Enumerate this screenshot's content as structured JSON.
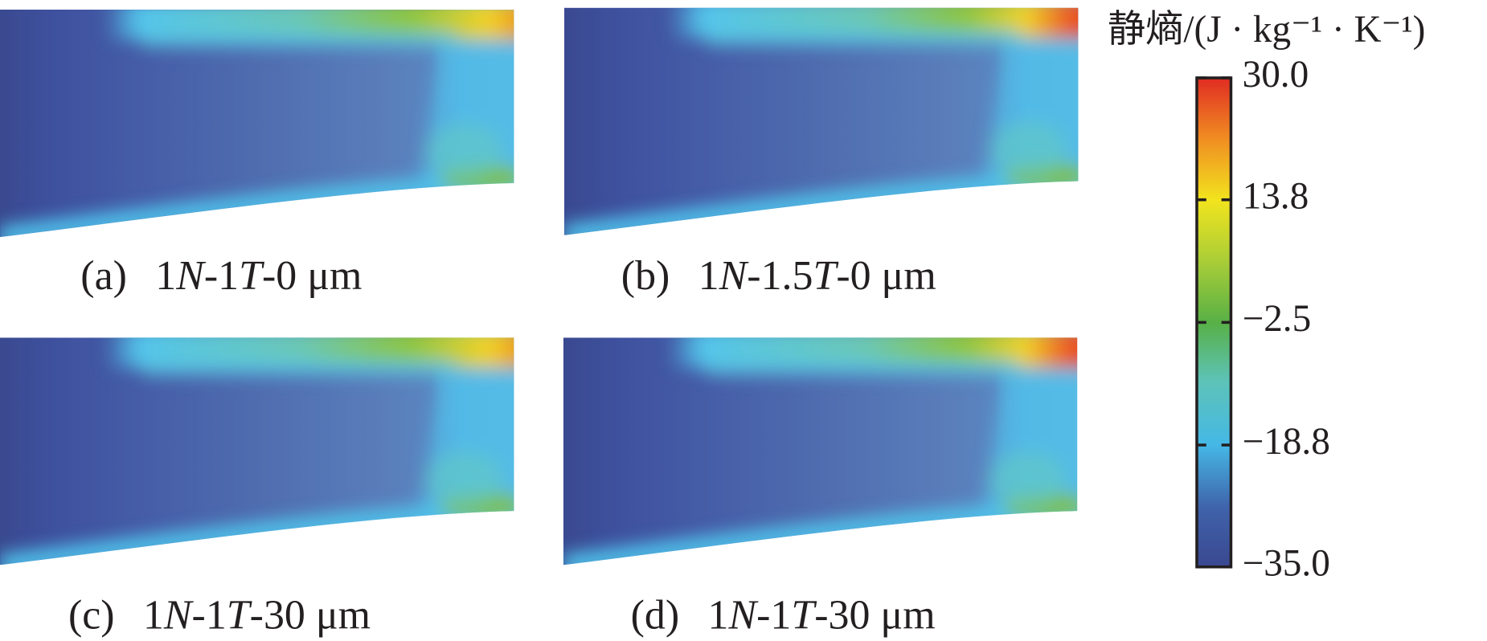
{
  "panels": [
    {
      "tag": "(a)",
      "text": "1N-1T-0 μm"
    },
    {
      "tag": "(b)",
      "text": "1N-1.5T-0 μm"
    },
    {
      "tag": "(c)",
      "text": "1N-1T-30 μm"
    },
    {
      "tag": "(d)",
      "text": "1N-1T-30 μm"
    }
  ],
  "colorbar": {
    "title": "静熵/(J · kg⁻¹ · K⁻¹)",
    "lim": [
      -35,
      30
    ],
    "ticks": [
      {
        "value": -35,
        "label": "−35.0"
      },
      {
        "value": -18.8,
        "label": "−18.8"
      },
      {
        "value": -2.5,
        "label": "−2.5"
      },
      13.8,
      {
        "value": 30,
        "label": "30.0"
      }
    ]
  }
}
